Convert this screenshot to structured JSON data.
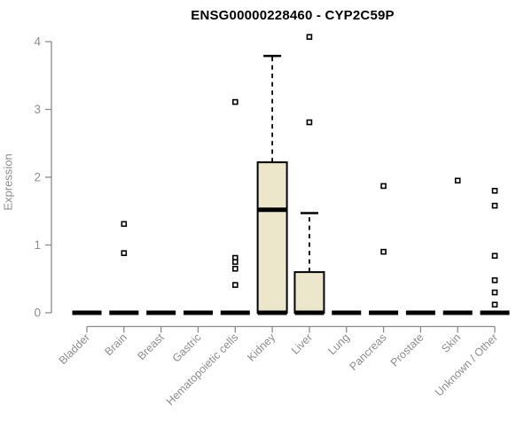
{
  "chart_data": {
    "type": "boxplot",
    "title": "ENSG00000228460 - CYP2C59P",
    "ylabel": "Expression",
    "xlabel": "",
    "ylim": [
      0,
      4
    ],
    "yticks": [
      0,
      1,
      2,
      3,
      4
    ],
    "grid": false,
    "legend": false,
    "categories": [
      "Bladder",
      "Brain",
      "Breast",
      "Gastric",
      "Hematopoietic cells",
      "Kidney",
      "Liver",
      "Lung",
      "Pancreas",
      "Prostate",
      "Skin",
      "Unknown / Other"
    ],
    "series": [
      {
        "name": "Bladder",
        "q1": 0,
        "median": 0,
        "q3": 0,
        "whisker_low": 0,
        "whisker_high": 0,
        "outliers": []
      },
      {
        "name": "Brain",
        "q1": 0,
        "median": 0,
        "q3": 0,
        "whisker_low": 0,
        "whisker_high": 0,
        "outliers": [
          1.31,
          0.88
        ]
      },
      {
        "name": "Breast",
        "q1": 0,
        "median": 0,
        "q3": 0,
        "whisker_low": 0,
        "whisker_high": 0,
        "outliers": []
      },
      {
        "name": "Gastric",
        "q1": 0,
        "median": 0,
        "q3": 0,
        "whisker_low": 0,
        "whisker_high": 0,
        "outliers": []
      },
      {
        "name": "Hematopoietic cells",
        "q1": 0,
        "median": 0,
        "q3": 0,
        "whisker_low": 0,
        "whisker_high": 0,
        "outliers": [
          3.11,
          0.81,
          0.75,
          0.65,
          0.41
        ]
      },
      {
        "name": "Kidney",
        "q1": 0,
        "median": 1.52,
        "q3": 2.22,
        "whisker_low": 0,
        "whisker_high": 3.79,
        "outliers": []
      },
      {
        "name": "Liver",
        "q1": 0,
        "median": 0,
        "q3": 0.6,
        "whisker_low": 0,
        "whisker_high": 1.47,
        "outliers": [
          4.07,
          2.81
        ]
      },
      {
        "name": "Lung",
        "q1": 0,
        "median": 0,
        "q3": 0,
        "whisker_low": 0,
        "whisker_high": 0,
        "outliers": []
      },
      {
        "name": "Pancreas",
        "q1": 0,
        "median": 0,
        "q3": 0,
        "whisker_low": 0,
        "whisker_high": 0,
        "outliers": [
          1.87,
          0.9
        ]
      },
      {
        "name": "Prostate",
        "q1": 0,
        "median": 0,
        "q3": 0,
        "whisker_low": 0,
        "whisker_high": 0,
        "outliers": []
      },
      {
        "name": "Skin",
        "q1": 0,
        "median": 0,
        "q3": 0,
        "whisker_low": 0,
        "whisker_high": 0,
        "outliers": [
          1.95
        ]
      },
      {
        "name": "Unknown / Other",
        "q1": 0,
        "median": 0,
        "q3": 0,
        "whisker_low": 0,
        "whisker_high": 0,
        "outliers": [
          1.8,
          1.58,
          0.84,
          0.48,
          0.3,
          0.12
        ]
      }
    ],
    "colors": {
      "background": "#FFFFFF",
      "box_fill": "#ECE7CB",
      "box_stroke": "#000000",
      "median": "#000000",
      "whisker": "#000000",
      "outlier_fill": "#FFFFFF",
      "outlier_stroke": "#000000",
      "axis": "#8C8C8C",
      "tick_label": "#8C8C8C",
      "title": "#000000"
    }
  }
}
